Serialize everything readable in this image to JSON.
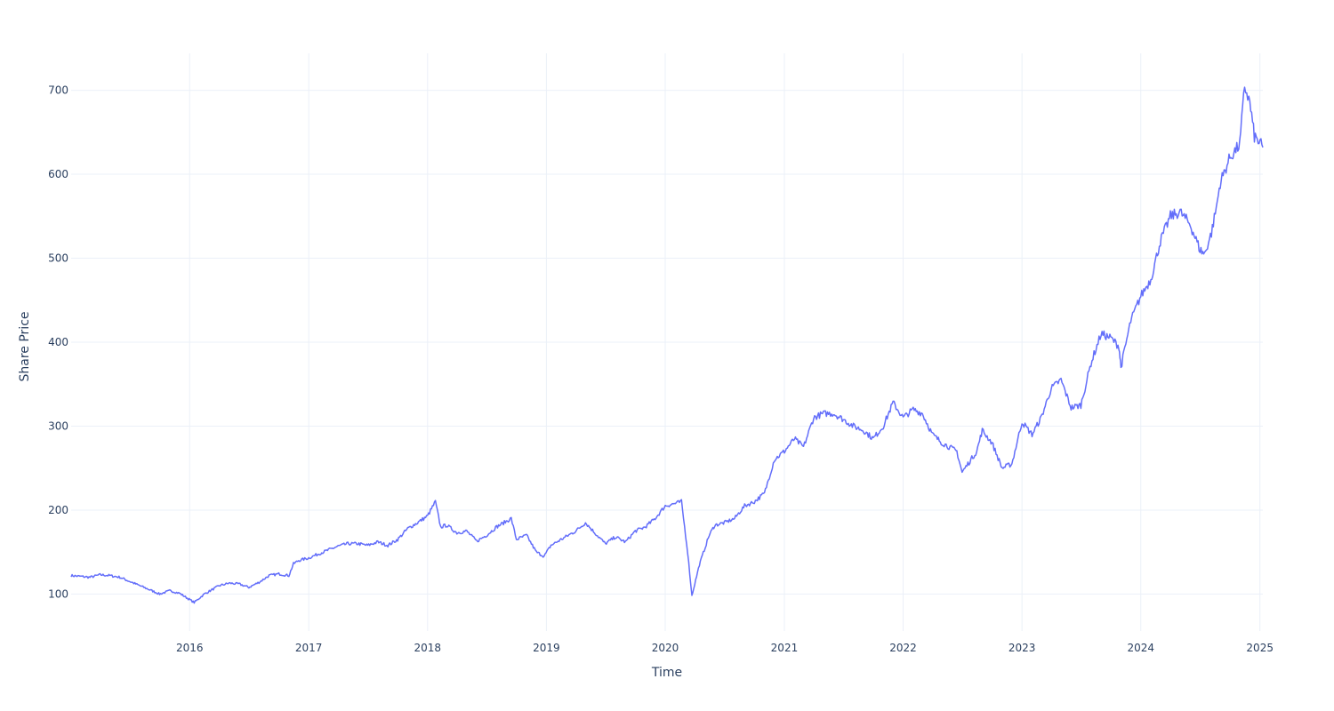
{
  "chart_data": {
    "type": "line",
    "title": "",
    "xlabel": "Time",
    "ylabel": "Share Price",
    "x_ticks": [
      "2016",
      "2017",
      "2018",
      "2019",
      "2020",
      "2021",
      "2022",
      "2023",
      "2024",
      "2025"
    ],
    "y_ticks": [
      100,
      200,
      300,
      400,
      500,
      600,
      700
    ],
    "xlim": [
      "2015-01-02",
      "2025-01-10"
    ],
    "ylim": [
      56,
      744
    ],
    "grid": true,
    "legend": "none",
    "series_color": "#636efa",
    "series": [
      {
        "x": [
          "2015-01-02",
          "2015-02-01",
          "2015-03-01",
          "2015-04-01",
          "2015-05-01",
          "2015-06-01",
          "2015-07-01",
          "2015-08-01",
          "2015-09-01",
          "2015-10-01",
          "2015-11-01",
          "2015-12-01",
          "2016-01-15",
          "2016-02-15",
          "2016-04-01",
          "2016-05-01",
          "2016-06-01",
          "2016-07-01",
          "2016-08-01",
          "2016-09-01",
          "2016-10-01",
          "2016-11-01",
          "2016-11-15",
          "2016-12-01",
          "2017-01-01",
          "2017-02-01",
          "2017-04-01",
          "2017-05-01",
          "2017-06-01",
          "2017-07-01",
          "2017-08-01",
          "2017-09-01",
          "2017-10-01",
          "2017-11-01",
          "2017-12-01",
          "2018-01-01",
          "2018-01-25",
          "2018-02-10",
          "2018-03-01",
          "2018-04-01",
          "2018-05-01",
          "2018-06-01",
          "2018-07-01",
          "2018-08-01",
          "2018-09-15",
          "2018-10-01",
          "2018-11-01",
          "2018-12-01",
          "2018-12-25",
          "2019-01-15",
          "2019-02-15",
          "2019-04-01",
          "2019-05-01",
          "2019-06-01",
          "2019-07-01",
          "2019-08-01",
          "2019-09-01",
          "2019-10-01",
          "2019-11-01",
          "2019-12-01",
          "2020-01-01",
          "2020-02-01",
          "2020-02-20",
          "2020-03-10",
          "2020-03-23",
          "2020-04-15",
          "2020-05-15",
          "2020-06-01",
          "2020-07-01",
          "2020-08-01",
          "2020-09-01",
          "2020-10-01",
          "2020-11-01",
          "2020-12-01",
          "2021-01-01",
          "2021-02-01",
          "2021-03-01",
          "2021-04-01",
          "2021-05-01",
          "2021-06-01",
          "2021-07-01",
          "2021-08-01",
          "2021-09-01",
          "2021-10-01",
          "2021-11-01",
          "2021-12-01",
          "2022-01-01",
          "2022-02-01",
          "2022-03-01",
          "2022-04-01",
          "2022-05-01",
          "2022-06-15",
          "2022-07-01",
          "2022-08-15",
          "2022-09-01",
          "2022-10-01",
          "2022-11-01",
          "2022-12-01",
          "2023-01-01",
          "2023-02-01",
          "2023-03-01",
          "2023-04-01",
          "2023-05-01",
          "2023-06-01",
          "2023-07-01",
          "2023-08-01",
          "2023-09-01",
          "2023-10-01",
          "2023-10-26",
          "2023-11-01",
          "2023-12-01",
          "2024-01-01",
          "2024-02-01",
          "2024-03-01",
          "2024-04-01",
          "2024-05-01",
          "2024-06-01",
          "2024-07-01",
          "2024-07-15",
          "2024-08-05",
          "2024-08-20",
          "2024-09-01",
          "2024-10-01",
          "2024-10-31",
          "2024-11-15",
          "2024-12-01",
          "2024-12-15",
          "2025-01-10"
        ],
        "y": [
          122,
          121,
          120,
          123,
          122,
          120,
          115,
          110,
          105,
          100,
          104,
          101,
          90,
          100,
          110,
          113,
          112,
          108,
          114,
          122,
          124,
          122,
          136,
          140,
          143,
          148,
          157,
          160,
          160,
          158,
          162,
          158,
          165,
          178,
          185,
          193,
          210,
          180,
          182,
          173,
          175,
          163,
          170,
          180,
          190,
          165,
          170,
          150,
          145,
          158,
          165,
          175,
          185,
          172,
          160,
          168,
          162,
          175,
          180,
          190,
          205,
          208,
          210,
          150,
          98,
          135,
          170,
          182,
          185,
          190,
          205,
          210,
          220,
          260,
          270,
          285,
          275,
          310,
          315,
          315,
          308,
          300,
          295,
          285,
          300,
          328,
          310,
          320,
          315,
          290,
          280,
          270,
          245,
          270,
          295,
          280,
          250,
          255,
          305,
          290,
          310,
          345,
          355,
          322,
          325,
          375,
          410,
          405,
          395,
          370,
          425,
          455,
          475,
          520,
          550,
          555,
          540,
          510,
          505,
          530,
          560,
          590,
          620,
          635,
          705,
          685,
          645,
          632
        ]
      }
    ]
  }
}
